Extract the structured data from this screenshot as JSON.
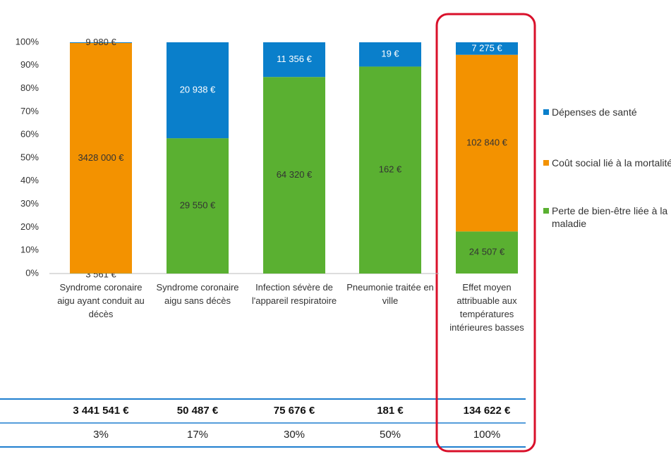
{
  "chart_data": {
    "type": "stacked_bar",
    "categories": [
      "Syndrome coronaire aigu ayant conduit au décès",
      "Syndrome coronaire aigu sans décès",
      "Infection sévère de l'appareil respiratoire",
      "Pneumonie traitée en ville",
      "Effet moyen attribuable aux températures intérieures basses"
    ],
    "series": [
      {
        "name": "Perte de bien-être liée à la maladie",
        "color": "#5ab031",
        "values": [
          0.1,
          58.5,
          85,
          89.5,
          18.2
        ],
        "labels": [
          "3 561 €",
          "29 550 €",
          "64 320 €",
          "162 €",
          "24 507 €"
        ]
      },
      {
        "name": "Coût social lié à la mortalité",
        "color": "#f39200",
        "values": [
          99.6,
          0,
          0,
          0,
          76.4
        ],
        "labels": [
          "3428 000 €",
          null,
          null,
          null,
          "102 840 €"
        ]
      },
      {
        "name": "Dépenses de santé",
        "color": "#0a7fcb",
        "values": [
          0.3,
          41.5,
          15,
          10.5,
          5.4
        ],
        "labels": [
          "9 980 €",
          "20 938 €",
          "11 356 €",
          "19 €",
          "7 275 €"
        ]
      }
    ],
    "ylim": [
      0,
      100
    ],
    "yticks": [
      {
        "value": 0,
        "label": "0%"
      },
      {
        "value": 10,
        "label": "10%"
      },
      {
        "value": 20,
        "label": "20%"
      },
      {
        "value": 30,
        "label": "30%"
      },
      {
        "value": 40,
        "label": "40%"
      },
      {
        "value": 50,
        "label": "50%"
      },
      {
        "value": 60,
        "label": "60%"
      },
      {
        "value": 70,
        "label": "70%"
      },
      {
        "value": 80,
        "label": "80%"
      },
      {
        "value": 90,
        "label": "90%"
      },
      {
        "value": 100,
        "label": "100%"
      }
    ],
    "legend": "right"
  },
  "table": {
    "rows": [
      [
        "3 441 541 €",
        "50 487 €",
        "75 676 €",
        "181 €",
        "134 622 €"
      ],
      [
        "3%",
        "17%",
        "30%",
        "50%",
        "100%"
      ]
    ]
  }
}
